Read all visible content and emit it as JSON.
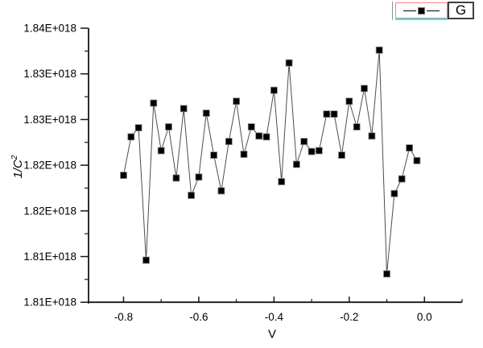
{
  "figure": {
    "background_color": "#ffffff",
    "y_axis_title": {
      "base": "1/C",
      "sup": "2"
    },
    "x_axis_title": "V",
    "legend": {
      "label": "G",
      "sample_border_color": "#ff8080",
      "underline_color": "#00ffff",
      "label_box_border_color": "#3f3f3f",
      "left_bar_color": "#8f8f8f"
    }
  },
  "chart_data": {
    "type": "line",
    "subtype": "line-plus-symbol",
    "title": "",
    "xlabel": "V",
    "ylabel": "1/C^2",
    "grid": false,
    "legend_position": "top-right-outside",
    "xlim": [
      -0.9,
      0.1
    ],
    "ylim": [
      1.81e+18,
      1.84e+18
    ],
    "x_axis": {
      "major_ticks": [
        -0.8,
        -0.6,
        -0.4,
        -0.2,
        0.0
      ],
      "tick_labels": [
        "-0.8",
        "-0.6",
        "-0.4",
        "-0.2",
        "0.0"
      ],
      "minor_ticks": [
        -0.7,
        -0.5,
        -0.3,
        -0.1,
        0.1
      ]
    },
    "y_axis": {
      "major_ticks_e18": [
        1.84,
        1.835,
        1.83,
        1.825,
        1.82,
        1.815,
        1.81
      ],
      "tick_labels": [
        "1.84E+018",
        "1.83E+018",
        "1.83E+018",
        "1.82E+018",
        "1.82E+018",
        "1.81E+018",
        "1.81E+018"
      ],
      "minor_ticks_e18": [
        1.8375,
        1.8325,
        1.8275,
        1.8225,
        1.8175,
        1.8125
      ]
    },
    "series": [
      {
        "name": "G",
        "marker": "filled-square",
        "marker_color": "#000000",
        "line_color": "#4d4d4d",
        "y_scale": 1e+18,
        "x": [
          -0.8,
          -0.78,
          -0.76,
          -0.74,
          -0.72,
          -0.7,
          -0.68,
          -0.66,
          -0.64,
          -0.62,
          -0.6,
          -0.58,
          -0.56,
          -0.54,
          -0.52,
          -0.5,
          -0.48,
          -0.46,
          -0.44,
          -0.42,
          -0.4,
          -0.38,
          -0.36,
          -0.34,
          -0.32,
          -0.3,
          -0.28,
          -0.26,
          -0.24,
          -0.22,
          -0.2,
          -0.18,
          -0.16,
          -0.14,
          -0.12,
          -0.1,
          -0.08,
          -0.06,
          -0.04,
          -0.02
        ],
        "y_e18": [
          1.8239,
          1.8281,
          1.8291,
          1.8146,
          1.8318,
          1.8266,
          1.8292,
          1.8236,
          1.8312,
          1.8217,
          1.8237,
          1.8307,
          1.8261,
          1.8222,
          1.8276,
          1.832,
          1.8262,
          1.8292,
          1.8282,
          1.8281,
          1.8332,
          1.8232,
          1.8362,
          1.8251,
          1.8276,
          1.8265,
          1.8266,
          1.8306,
          1.8306,
          1.8261,
          1.832,
          1.8292,
          1.8334,
          1.8282,
          1.8376,
          1.8131,
          1.8219,
          1.8235,
          1.8269,
          1.8255
        ]
      }
    ]
  }
}
